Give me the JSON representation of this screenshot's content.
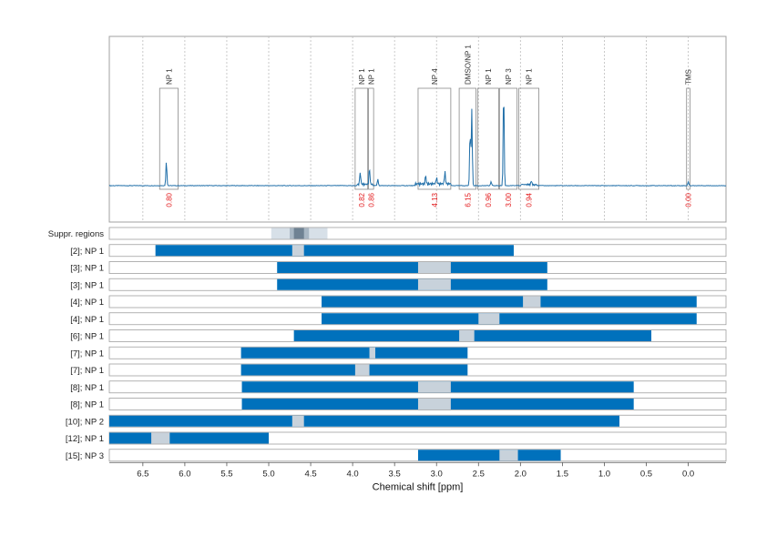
{
  "chart_data": [
    {
      "type": "line",
      "panel": "spectrum",
      "x_reversed": true,
      "xlim": [
        6.9,
        -0.45
      ],
      "grid": true,
      "grid_x": [
        6.5,
        6.0,
        5.5,
        5.0,
        4.5,
        4.0,
        3.5,
        3.0,
        2.5,
        2.0,
        1.5,
        1.0,
        0.5,
        0.0
      ],
      "series": [
        {
          "peaks": [
            {
              "x": 6.22,
              "height": 0.18
            },
            {
              "x": 3.91,
              "height": 0.09
            },
            {
              "x": 3.8,
              "height": 0.12
            },
            {
              "x": 3.7,
              "height": 0.05
            },
            {
              "x": 3.13,
              "height": 0.06
            },
            {
              "x": 3.0,
              "height": 0.05
            },
            {
              "x": 2.9,
              "height": 0.09
            },
            {
              "x": 2.6,
              "height": 0.4
            },
            {
              "x": 2.58,
              "height": 0.56
            },
            {
              "x": 2.2,
              "height": 0.72
            },
            {
              "x": 2.35,
              "height": 0.03
            },
            {
              "x": 1.87,
              "height": 0.03
            },
            {
              "x": 0.0,
              "height": 0.03
            }
          ]
        }
      ],
      "regions": [
        {
          "label": "NP 1",
          "from": 6.3,
          "to": 6.08,
          "integral": "0.80"
        },
        {
          "label": "NP 1",
          "from": 3.97,
          "to": 3.82,
          "integral": "0.82"
        },
        {
          "label": "NP 1",
          "from": 3.81,
          "to": 3.75,
          "integral": "0.86"
        },
        {
          "label": "NP 4",
          "from": 3.22,
          "to": 2.83,
          "integral": "4.13"
        },
        {
          "label": "DMSO/NP 1",
          "from": 2.73,
          "to": 2.53,
          "integral": "6.15"
        },
        {
          "label": "NP 1",
          "from": 2.51,
          "to": 2.26,
          "integral": "0.96"
        },
        {
          "label": "NP 3",
          "from": 2.25,
          "to": 2.04,
          "integral": "3.00"
        },
        {
          "label": "NP 1",
          "from": 2.02,
          "to": 1.78,
          "integral": "0.94"
        },
        {
          "label": "TMS",
          "from": 0.02,
          "to": -0.02,
          "integral": "0.00"
        }
      ]
    },
    {
      "type": "bar",
      "panel": "ranges",
      "xlabel": "Chemical shift [ppm]",
      "xlim": [
        6.9,
        -0.45
      ],
      "x_ticks": [
        "6.5",
        "6.0",
        "5.5",
        "5.0",
        "4.5",
        "4.0",
        "3.5",
        "3.0",
        "2.5",
        "2.0",
        "1.5",
        "1.0",
        "0.5",
        "0.0"
      ],
      "x_tick_values": [
        6.5,
        6.0,
        5.5,
        5.0,
        4.5,
        4.0,
        3.5,
        3.0,
        2.5,
        2.0,
        1.5,
        1.0,
        0.5,
        0.0
      ],
      "rows": [
        {
          "label": "Suppr. regions",
          "suppressed": [
            {
              "from": 4.97,
              "to": 4.3,
              "color": "#d7e0e8"
            },
            {
              "from": 4.75,
              "to": 4.52,
              "color": "#a8b7c4"
            },
            {
              "from": 4.7,
              "to": 4.58,
              "color": "#6f8293"
            }
          ]
        },
        {
          "label": "[2]; NP 1",
          "range": [
            6.35,
            2.08
          ],
          "gaps": [
            [
              4.72,
              4.58
            ]
          ]
        },
        {
          "label": "[3]; NP 1",
          "range": [
            4.9,
            1.68
          ],
          "gaps": [
            [
              3.22,
              2.83
            ]
          ]
        },
        {
          "label": "[3]; NP 1",
          "range": [
            4.9,
            1.68
          ],
          "gaps": [
            [
              3.22,
              2.83
            ]
          ]
        },
        {
          "label": "[4]; NP 1",
          "range": [
            4.37,
            -0.1
          ],
          "gaps": [
            [
              1.97,
              1.76
            ]
          ]
        },
        {
          "label": "[4]; NP 1",
          "range": [
            4.37,
            -0.1
          ],
          "gaps": [
            [
              2.5,
              2.25
            ]
          ]
        },
        {
          "label": "[6]; NP 1",
          "range": [
            4.7,
            0.44
          ],
          "gaps": [
            [
              2.73,
              2.55
            ]
          ]
        },
        {
          "label": "[7]; NP 1",
          "range": [
            5.33,
            2.63
          ],
          "gaps": [
            [
              3.8,
              3.73
            ]
          ]
        },
        {
          "label": "[7]; NP 1",
          "range": [
            5.33,
            2.63
          ],
          "gaps": [
            [
              3.97,
              3.8
            ]
          ]
        },
        {
          "label": "[8]; NP 1",
          "range": [
            5.32,
            0.65
          ],
          "gaps": [
            [
              3.22,
              2.83
            ]
          ]
        },
        {
          "label": "[8]; NP 1",
          "range": [
            5.32,
            0.65
          ],
          "gaps": [
            [
              3.22,
              2.83
            ]
          ]
        },
        {
          "label": "[10]; NP 2",
          "range": [
            6.9,
            0.82
          ],
          "gaps": [
            [
              4.72,
              4.58
            ]
          ]
        },
        {
          "label": "[12]; NP 1",
          "range": [
            6.9,
            5.0
          ],
          "gaps": [
            [
              6.4,
              6.18
            ]
          ]
        },
        {
          "label": "[15]; NP 3",
          "range": [
            3.22,
            1.52
          ],
          "gaps": [
            [
              2.25,
              2.03
            ]
          ]
        }
      ]
    }
  ],
  "colors": {
    "spectrum": "#1f6ea8",
    "bar": "#0071bc",
    "gap": "#c8d2db",
    "integral": "#e31a1c",
    "frame": "#a0a0a0",
    "grid": "#bdbdbd"
  }
}
